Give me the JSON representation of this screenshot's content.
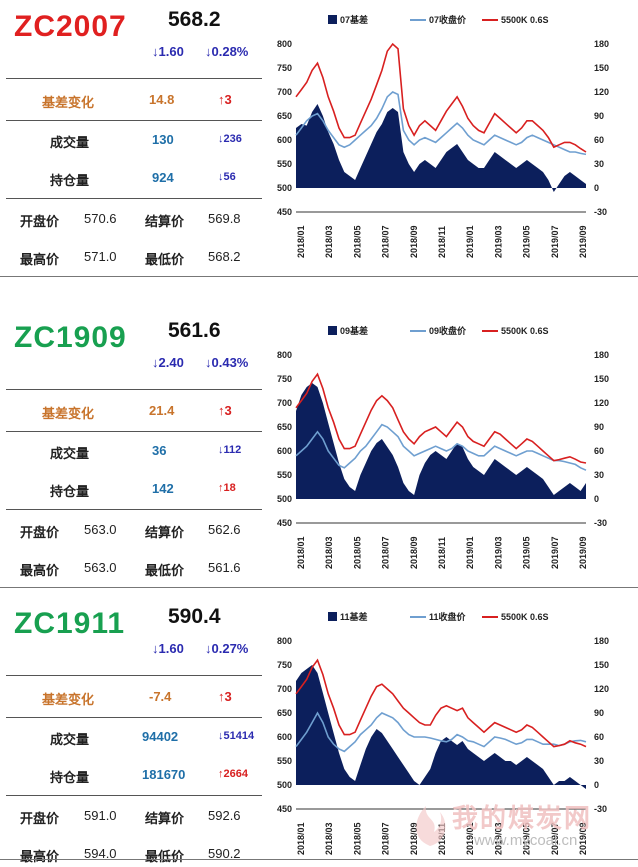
{
  "colors": {
    "basis_fill": "#0c1f5c",
    "close_line": "#6f9fd0",
    "index_line": "#d82020",
    "code_red": "#e02020",
    "code_green": "#18a050",
    "basis_label": "#c8742c",
    "up_red": "#d82020",
    "down_blue": "#2b2bb0",
    "volume_blue": "#1f6fa8"
  },
  "watermark": {
    "text": "我的煤炭网",
    "url": "www.mycoal.cn"
  },
  "panels": [
    {
      "code": "ZC2007",
      "code_color": "red",
      "price": "568.2",
      "change": "↓1.60",
      "change_pct": "↓0.28%",
      "basis": {
        "label": "基差变化",
        "value": "14.8",
        "delta": "↑3"
      },
      "volume": {
        "label": "成交量",
        "value": "130",
        "delta": "↓236"
      },
      "oi": {
        "label": "持仓量",
        "value": "924",
        "delta": "↓56"
      },
      "open": {
        "label": "开盘价",
        "value": "570.6"
      },
      "settle": {
        "label": "结算价",
        "value": "569.8"
      },
      "high": {
        "label": "最高价",
        "value": "571.0"
      },
      "low": {
        "label": "最低价",
        "value": "568.2"
      },
      "chart_data": {
        "type": "area+line",
        "legend": [
          "07基差",
          "07收盘价",
          "5500K 0.6S"
        ],
        "x_ticks": [
          "2018/01",
          "2018/03",
          "2018/05",
          "2018/07",
          "2018/09",
          "2018/11",
          "2019/01",
          "2019/03",
          "2019/05",
          "2019/07",
          "2019/09"
        ],
        "y_left": {
          "range": [
            450,
            800
          ],
          "ticks": [
            450,
            500,
            550,
            600,
            650,
            700,
            750,
            800
          ]
        },
        "y_right": {
          "range": [
            -30,
            180
          ],
          "ticks": [
            -30,
            0,
            30,
            60,
            90,
            120,
            150,
            180
          ]
        },
        "series": [
          {
            "name": "07基差",
            "axis": "right",
            "values": [
              75,
              80,
              78,
              95,
              105,
              90,
              70,
              55,
              35,
              20,
              15,
              10,
              25,
              40,
              55,
              70,
              80,
              95,
              100,
              95,
              45,
              30,
              20,
              30,
              35,
              30,
              25,
              35,
              45,
              50,
              55,
              45,
              35,
              30,
              25,
              25,
              35,
              45,
              40,
              35,
              30,
              25,
              30,
              35,
              30,
              25,
              20,
              10,
              -5,
              5,
              15,
              20,
              15,
              10,
              5
            ]
          },
          {
            "name": "07收盘价",
            "axis": "left",
            "values": [
              610,
              625,
              640,
              650,
              655,
              640,
              620,
              605,
              590,
              585,
              590,
              600,
              610,
              620,
              630,
              645,
              665,
              690,
              700,
              695,
              620,
              600,
              590,
              600,
              605,
              600,
              595,
              605,
              615,
              625,
              635,
              625,
              610,
              600,
              595,
              590,
              600,
              610,
              605,
              600,
              595,
              590,
              595,
              605,
              610,
              605,
              600,
              595,
              590,
              585,
              580,
              575,
              575,
              572,
              570
            ]
          },
          {
            "name": "5500K 0.6S",
            "axis": "left",
            "values": [
              690,
              705,
              720,
              745,
              760,
              730,
              690,
              660,
              625,
              605,
              605,
              610,
              635,
              660,
              685,
              715,
              745,
              785,
              800,
              790,
              665,
              630,
              610,
              630,
              640,
              630,
              620,
              640,
              660,
              675,
              690,
              670,
              645,
              630,
              620,
              615,
              635,
              655,
              645,
              635,
              625,
              615,
              625,
              640,
              640,
              630,
              620,
              605,
              585,
              590,
              595,
              595,
              590,
              582,
              575
            ]
          }
        ]
      }
    },
    {
      "code": "ZC1909",
      "code_color": "green",
      "price": "561.6",
      "change": "↓2.40",
      "change_pct": "↓0.43%",
      "basis": {
        "label": "基差变化",
        "value": "21.4",
        "delta": "↑3"
      },
      "volume": {
        "label": "成交量",
        "value": "36",
        "delta": "↓112"
      },
      "oi": {
        "label": "持仓量",
        "value": "142",
        "delta": "↑18"
      },
      "open": {
        "label": "开盘价",
        "value": "563.0"
      },
      "settle": {
        "label": "结算价",
        "value": "562.6"
      },
      "high": {
        "label": "最高价",
        "value": "563.0"
      },
      "low": {
        "label": "最低价",
        "value": "561.6"
      },
      "chart_data": {
        "type": "area+line",
        "legend": [
          "09基差",
          "09收盘价",
          "5500K 0.6S"
        ],
        "x_ticks": [
          "2018/01",
          "2018/03",
          "2018/05",
          "2018/07",
          "2018/09",
          "2018/11",
          "2019/01",
          "2019/03",
          "2019/05",
          "2019/07",
          "2019/09"
        ],
        "y_left": {
          "range": [
            450,
            800
          ],
          "ticks": [
            450,
            500,
            550,
            600,
            650,
            700,
            750,
            800
          ]
        },
        "y_right": {
          "range": [
            -30,
            180
          ],
          "ticks": [
            -30,
            0,
            30,
            60,
            90,
            120,
            150,
            180
          ]
        },
        "series": [
          {
            "name": "09基差",
            "axis": "right",
            "values": [
              110,
              130,
              140,
              145,
              140,
              120,
              95,
              70,
              45,
              25,
              15,
              10,
              30,
              45,
              60,
              70,
              75,
              65,
              55,
              40,
              20,
              10,
              5,
              30,
              45,
              55,
              60,
              55,
              50,
              60,
              70,
              65,
              50,
              40,
              35,
              30,
              40,
              50,
              45,
              40,
              35,
              30,
              35,
              40,
              35,
              30,
              25,
              15,
              5,
              10,
              15,
              20,
              15,
              10,
              20
            ]
          },
          {
            "name": "09收盘价",
            "axis": "left",
            "values": [
              590,
              600,
              610,
              625,
              640,
              625,
              600,
              585,
              570,
              565,
              575,
              585,
              600,
              610,
              625,
              640,
              655,
              650,
              640,
              630,
              610,
              600,
              590,
              595,
              600,
              605,
              610,
              605,
              600,
              605,
              615,
              610,
              600,
              595,
              590,
              590,
              600,
              610,
              605,
              600,
              595,
              590,
              595,
              600,
              600,
              595,
              590,
              585,
              580,
              580,
              578,
              575,
              572,
              565,
              560
            ]
          },
          {
            "name": "5500K 0.6S",
            "axis": "left",
            "values": [
              690,
              705,
              720,
              745,
              760,
              730,
              690,
              660,
              625,
              605,
              605,
              610,
              635,
              660,
              685,
              705,
              715,
              705,
              690,
              665,
              640,
              625,
              615,
              630,
              640,
              645,
              650,
              640,
              630,
              645,
              660,
              650,
              630,
              620,
              615,
              610,
              625,
              640,
              635,
              625,
              615,
              605,
              615,
              625,
              620,
              610,
              600,
              590,
              580,
              582,
              585,
              588,
              583,
              577,
              575
            ]
          }
        ]
      }
    },
    {
      "code": "ZC1911",
      "code_color": "green",
      "price": "590.4",
      "change": "↓1.60",
      "change_pct": "↓0.27%",
      "basis": {
        "label": "基差变化",
        "value": "-7.4",
        "delta": "↑3"
      },
      "volume": {
        "label": "成交量",
        "value": "94402",
        "delta": "↓51414"
      },
      "oi": {
        "label": "持仓量",
        "value": "181670",
        "delta": "↑2664"
      },
      "open": {
        "label": "开盘价",
        "value": "591.0"
      },
      "settle": {
        "label": "结算价",
        "value": "592.6"
      },
      "high": {
        "label": "最高价",
        "value": "594.0"
      },
      "low": {
        "label": "最低价",
        "value": "590.2"
      },
      "chart_data": {
        "type": "area+line",
        "legend": [
          "11基差",
          "11收盘价",
          "5500K 0.6S"
        ],
        "x_ticks": [
          "2018/01",
          "2018/03",
          "2018/05",
          "2018/07",
          "2018/09",
          "2018/11",
          "2019/01",
          "2019/03",
          "2019/05",
          "2019/07",
          "2019/09"
        ],
        "y_left": {
          "range": [
            450,
            800
          ],
          "ticks": [
            450,
            500,
            550,
            600,
            650,
            700,
            750,
            800
          ]
        },
        "y_right": {
          "range": [
            -30,
            180
          ],
          "ticks": [
            -30,
            0,
            30,
            60,
            90,
            120,
            150,
            180
          ]
        },
        "series": [
          {
            "name": "11基差",
            "axis": "right",
            "values": [
              130,
              140,
              145,
              150,
              140,
              115,
              90,
              65,
              40,
              20,
              10,
              5,
              25,
              45,
              60,
              70,
              65,
              55,
              45,
              35,
              25,
              15,
              5,
              0,
              10,
              20,
              40,
              55,
              60,
              55,
              50,
              55,
              45,
              40,
              35,
              30,
              35,
              40,
              35,
              30,
              30,
              25,
              30,
              35,
              30,
              25,
              20,
              10,
              0,
              5,
              5,
              10,
              5,
              0,
              -5
            ]
          },
          {
            "name": "11收盘价",
            "axis": "left",
            "values": [
              580,
              595,
              610,
              630,
              650,
              630,
              600,
              585,
              575,
              570,
              580,
              590,
              605,
              615,
              625,
              640,
              650,
              645,
              640,
              630,
              615,
              605,
              600,
              600,
              600,
              598,
              595,
              592,
              590,
              595,
              605,
              600,
              592,
              590,
              585,
              580,
              590,
              600,
              598,
              595,
              590,
              585,
              588,
              595,
              595,
              590,
              585,
              585,
              585,
              582,
              585,
              590,
              592,
              593,
              590
            ]
          },
          {
            "name": "5500K 0.6S",
            "axis": "left",
            "values": [
              690,
              705,
              720,
              745,
              760,
              730,
              690,
              660,
              625,
              605,
              605,
              610,
              635,
              660,
              685,
              705,
              710,
              700,
              690,
              675,
              660,
              650,
              640,
              630,
              625,
              625,
              645,
              660,
              665,
              660,
              655,
              660,
              640,
              630,
              620,
              610,
              620,
              630,
              625,
              620,
              615,
              610,
              615,
              625,
              620,
              610,
              600,
              590,
              580,
              582,
              585,
              592,
              588,
              585,
              580
            ]
          }
        ]
      }
    }
  ]
}
